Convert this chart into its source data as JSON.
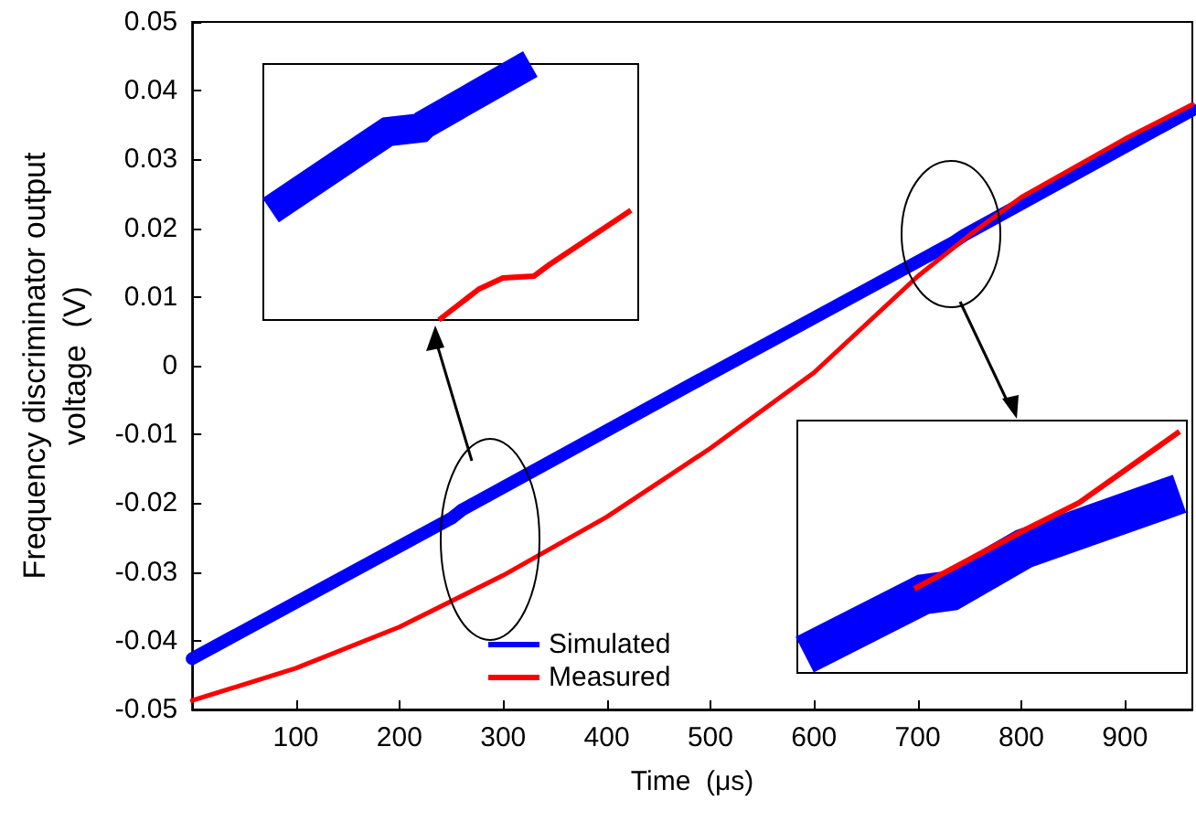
{
  "chart_data": {
    "type": "line",
    "xlabel": "Time  (μs)",
    "ylabel": "Frequency discriminator output\nvoltage  (V)",
    "xlim": [
      0,
      965
    ],
    "xticks": [
      100,
      200,
      300,
      400,
      500,
      600,
      700,
      800,
      900
    ],
    "ylim": [
      -0.05,
      0.05
    ],
    "yticks": [
      -0.05,
      -0.04,
      -0.03,
      -0.02,
      -0.01,
      0,
      0.01,
      0.02,
      0.03,
      0.04,
      0.05
    ],
    "grid": false,
    "legend": "bottom left",
    "marker": "none",
    "line_style": "solid",
    "series": [
      {
        "name": "Simulated",
        "color": "#0000ff",
        "x": [
          0,
          250,
          260,
          500,
          735,
          745,
          965
        ],
        "values": [
          -0.0426,
          -0.0222,
          -0.021,
          -0.0012,
          0.018,
          0.019,
          0.0372
        ]
      },
      {
        "name": "Measured",
        "color": "#ff0000",
        "x": [
          0,
          100,
          200,
          300,
          400,
          500,
          600,
          700,
          750,
          800,
          900,
          965
        ],
        "values": [
          -0.0487,
          -0.044,
          -0.038,
          -0.0305,
          -0.022,
          -0.012,
          -0.001,
          0.013,
          0.019,
          0.0245,
          0.033,
          0.038
        ]
      }
    ]
  }
}
